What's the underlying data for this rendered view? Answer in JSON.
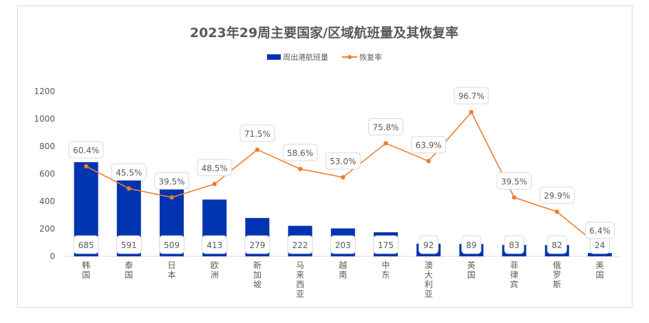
{
  "chart_data": {
    "type": "bar",
    "title": "2023年29周主要国家/区域航班量及其恢复率",
    "categories": [
      "韩国",
      "泰国",
      "日本",
      "欧洲",
      "新加坡",
      "马来西亚",
      "越南",
      "中东",
      "澳大利亚",
      "英国",
      "菲律宾",
      "俄罗斯",
      "美国"
    ],
    "series": [
      {
        "name": "周出港航班量",
        "type": "bar",
        "axis": "left",
        "color": "#0033b0",
        "values": [
          685,
          591,
          509,
          413,
          279,
          222,
          203,
          175,
          92,
          89,
          83,
          82,
          24
        ]
      },
      {
        "name": "恢复率",
        "type": "line",
        "axis": "right-hidden",
        "color": "#ed7d31",
        "values": [
          60.4,
          45.5,
          39.5,
          48.5,
          71.5,
          58.6,
          53.0,
          75.8,
          63.9,
          96.7,
          39.5,
          29.9,
          6.4
        ],
        "labels": [
          "60.4%",
          "45.5%",
          "39.5%",
          "48.5%",
          "71.5%",
          "58.6%",
          "53.0%",
          "75.8%",
          "63.9%",
          "96.7%",
          "39.5%",
          "29.9%",
          "6.4%"
        ]
      }
    ],
    "ylim": [
      0,
      1200
    ],
    "yticks": [
      "0",
      "200",
      "400",
      "600",
      "800",
      "1000",
      "1200"
    ],
    "y2lim": [
      0,
      110.6
    ],
    "legend": "top",
    "grid": false,
    "xlabel": "",
    "ylabel": ""
  }
}
